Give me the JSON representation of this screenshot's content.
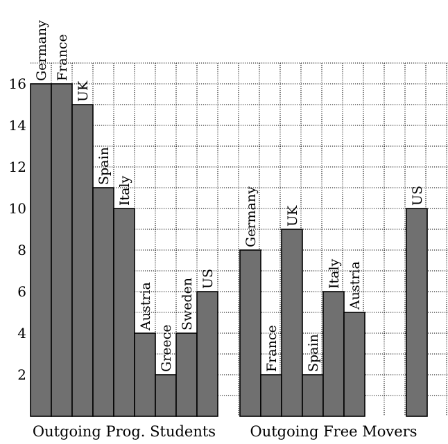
{
  "chart_data": {
    "type": "bar",
    "ylim": [
      0,
      17
    ],
    "yticks": [
      2,
      4,
      6,
      8,
      10,
      12,
      14,
      16
    ],
    "grid": true,
    "bar_color": "#707070",
    "groups": [
      {
        "label": "Outgoing Prog. Students",
        "bars": [
          {
            "label": "Germany",
            "value": 16
          },
          {
            "label": "France",
            "value": 16
          },
          {
            "label": "UK",
            "value": 15
          },
          {
            "label": "Spain",
            "value": 11
          },
          {
            "label": "Italy",
            "value": 10
          },
          {
            "label": "Austria",
            "value": 4
          },
          {
            "label": "Greece",
            "value": 2
          },
          {
            "label": "Sweden",
            "value": 4
          },
          {
            "label": "US",
            "value": 6
          }
        ]
      },
      {
        "label": "Outgoing Free Movers",
        "bars": [
          {
            "label": "Germany",
            "value": 8
          },
          {
            "label": "France",
            "value": 2
          },
          {
            "label": "UK",
            "value": 9
          },
          {
            "label": "Spain",
            "value": 2
          },
          {
            "label": "Italy",
            "value": 6
          },
          {
            "label": "Austria",
            "value": 5
          },
          {
            "label": "US",
            "value": 10
          }
        ]
      }
    ]
  }
}
